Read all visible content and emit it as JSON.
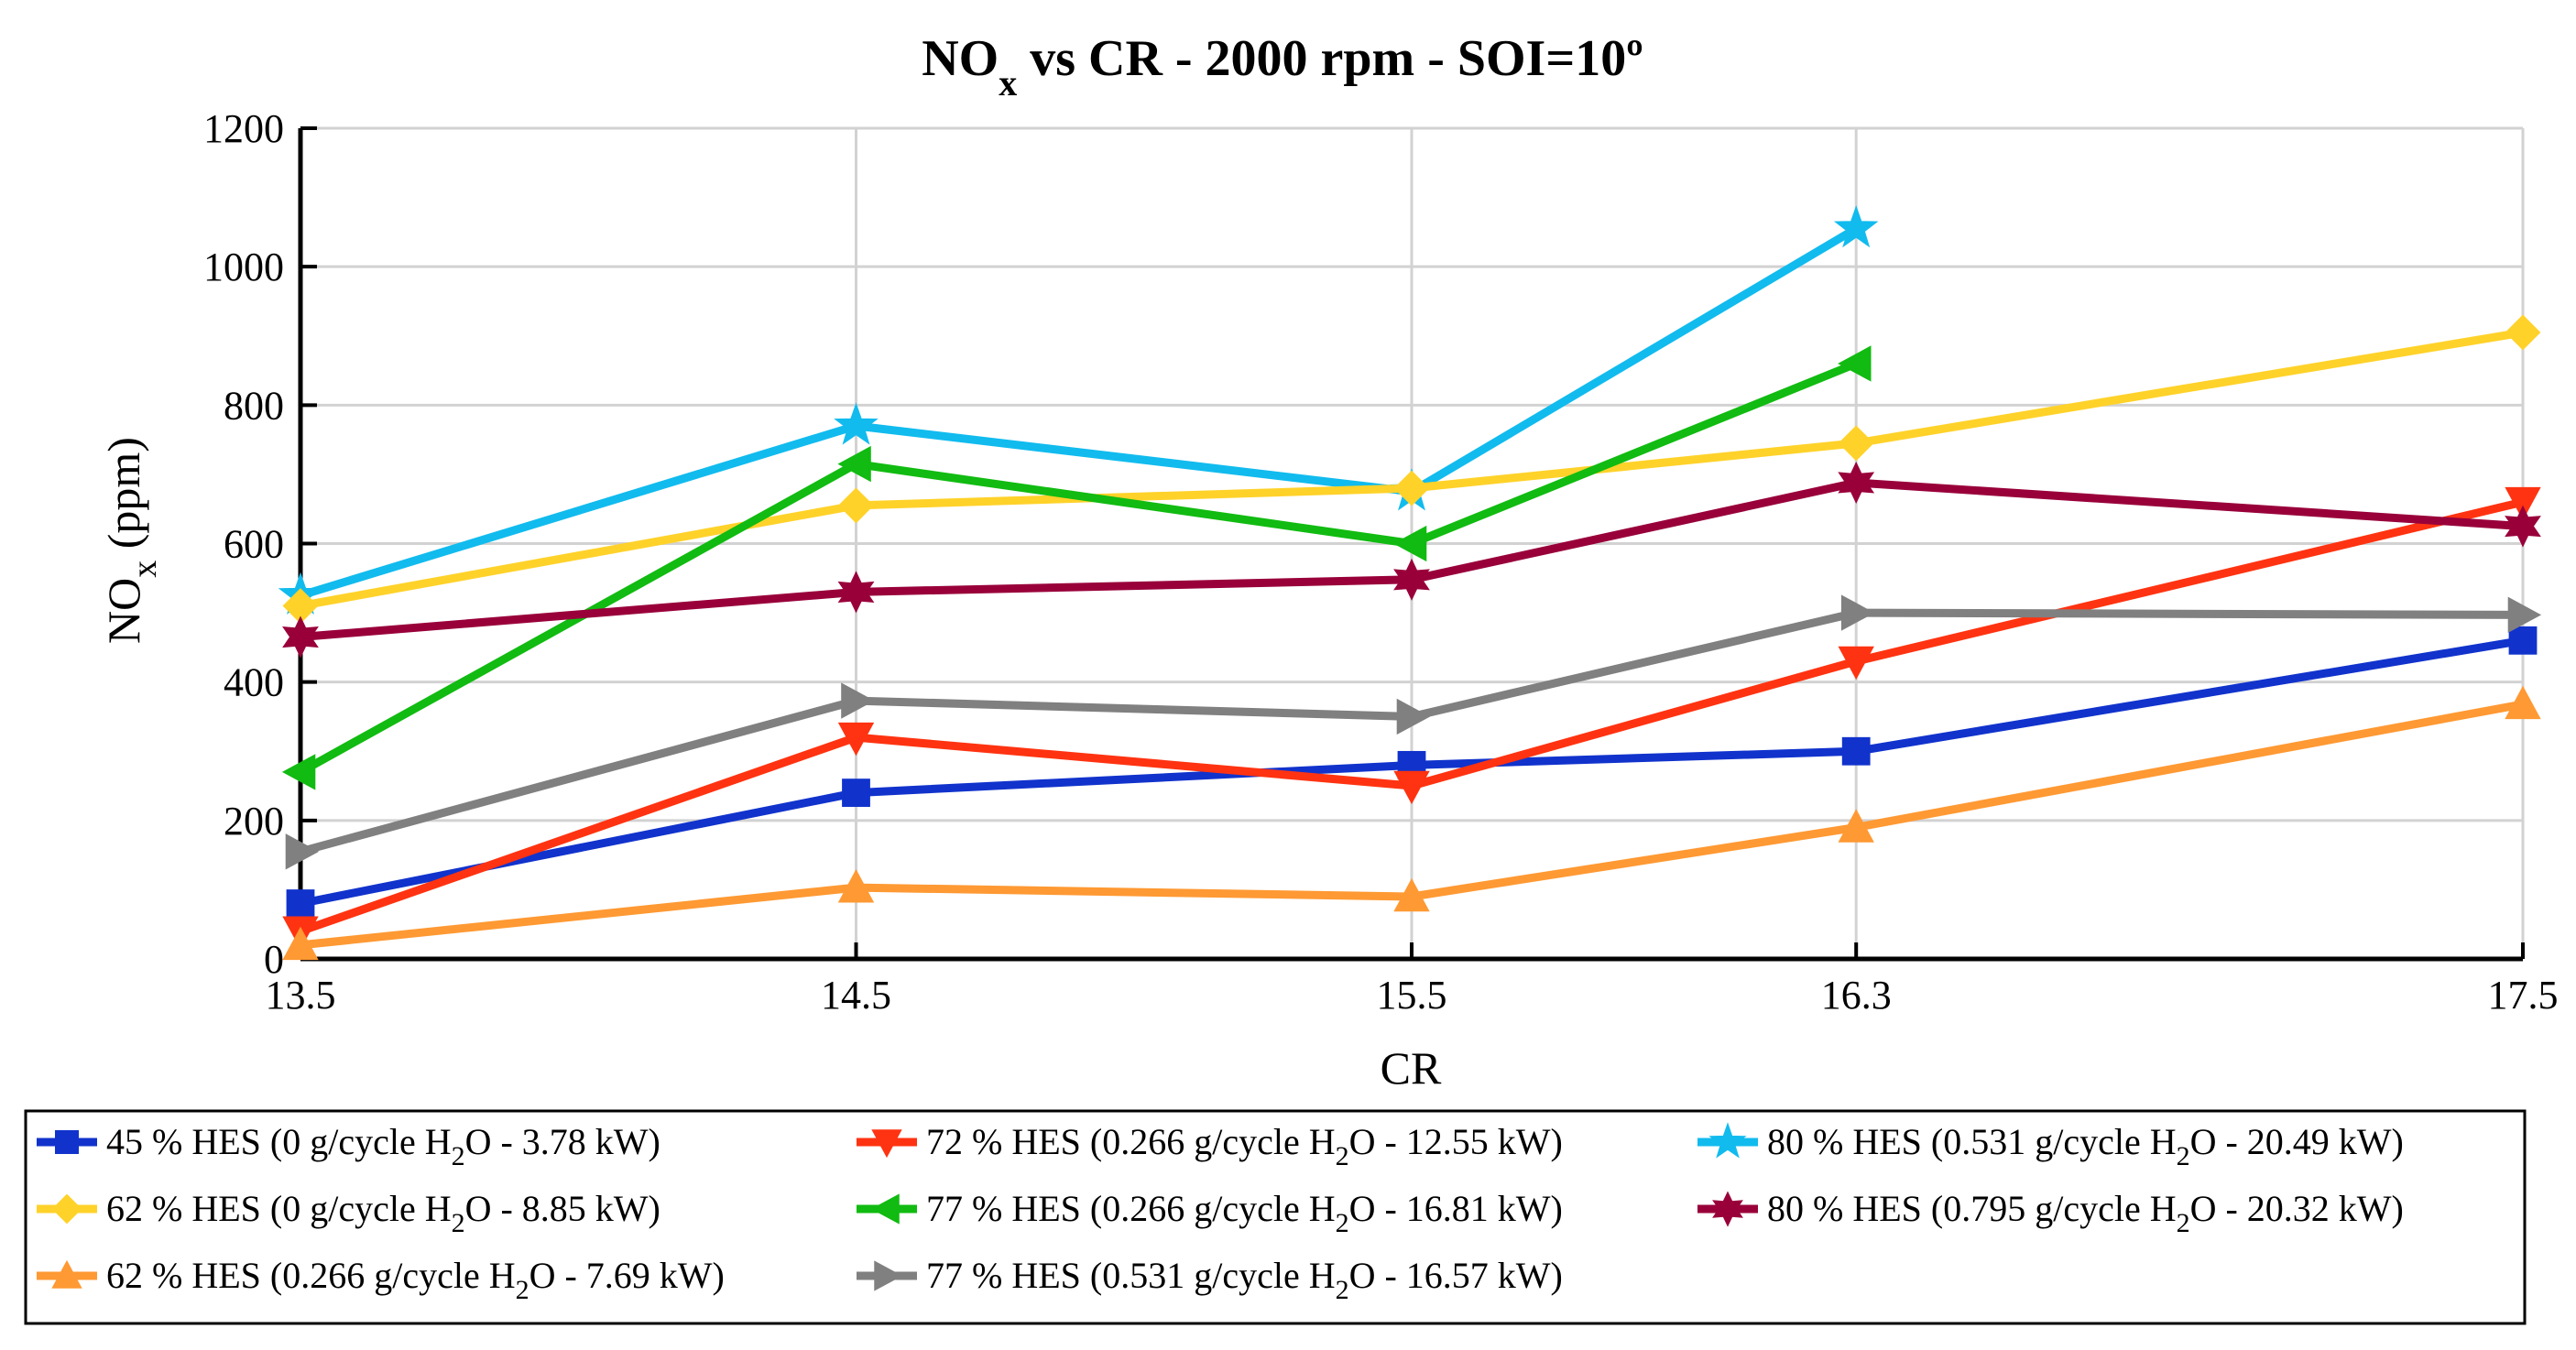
{
  "chart_data": {
    "type": "line",
    "title": "NOx vs CR - 2000 rpm - SOI=10º",
    "title_parts": {
      "main": "NO",
      "sub": "x",
      "rest": " vs CR - 2000 rpm - SOI=10º"
    },
    "xlabel": "CR",
    "ylabel": "NOx (ppm)",
    "ylabel_parts": {
      "main": "NO",
      "sub": "x",
      "rest": " (ppm)"
    },
    "x_ticks": [
      "13.5",
      "14.5",
      "15.5",
      "16.3",
      "17.5"
    ],
    "x_tick_values": [
      13.5,
      14.5,
      15.5,
      16.3,
      17.5
    ],
    "y_ticks": [
      "0",
      "200",
      "400",
      "600",
      "800",
      "1000",
      "1200"
    ],
    "y_tick_values": [
      0,
      200,
      400,
      600,
      800,
      1000,
      1200
    ],
    "xlim": [
      13.5,
      17.5
    ],
    "ylim": [
      0,
      1200
    ],
    "grid": true,
    "legend_position": "below",
    "series": [
      {
        "name": "45 % HES (0 g/cycle H2O - 3.78 kW)",
        "label": {
          "pre": "45 % HES (0 g/cycle H",
          "sub": "2",
          "post": "O - 3.78 kW)"
        },
        "color": "#1133cc",
        "marker": "square",
        "x": [
          13.5,
          14.5,
          15.5,
          16.3,
          17.5
        ],
        "y": [
          80,
          240,
          280,
          300,
          460
        ]
      },
      {
        "name": "72 % HES (0.266 g/cycle H2O - 12.55 kW)",
        "label": {
          "pre": "72 % HES (0.266 g/cycle H",
          "sub": "2",
          "post": "O - 12.55 kW)"
        },
        "color": "#ff3311",
        "marker": "triangle-down",
        "x": [
          13.5,
          14.5,
          15.5,
          16.3,
          17.5
        ],
        "y": [
          40,
          320,
          250,
          430,
          660
        ]
      },
      {
        "name": "80 % HES (0.531 g/cycle H2O - 20.49 kW)",
        "label": {
          "pre": "80 % HES (0.531 g/cycle H",
          "sub": "2",
          "post": "O - 20.49 kW)"
        },
        "color": "#11bbee",
        "marker": "star",
        "x": [
          13.5,
          14.5,
          15.5,
          16.3
        ],
        "y": [
          525,
          770,
          675,
          1055
        ]
      },
      {
        "name": "62 % HES (0 g/cycle H2O - 8.85 kW)",
        "label": {
          "pre": "62 % HES (0 g/cycle H",
          "sub": "2",
          "post": "O - 8.85 kW)"
        },
        "color": "#ffd22a",
        "marker": "diamond",
        "x": [
          13.5,
          14.5,
          15.5,
          16.3,
          17.5
        ],
        "y": [
          510,
          655,
          680,
          745,
          905
        ]
      },
      {
        "name": "77 % HES (0.266 g/cycle H2O - 16.81 kW)",
        "label": {
          "pre": "77 % HES (0.266 g/cycle H",
          "sub": "2",
          "post": "O - 16.81 kW)"
        },
        "color": "#11bb11",
        "marker": "triangle-left",
        "x": [
          13.5,
          14.5,
          15.5,
          16.3
        ],
        "y": [
          270,
          715,
          600,
          860
        ]
      },
      {
        "name": "80 % HES (0.795 g/cycle H2O - 20.32 kW)",
        "label": {
          "pre": "80 % HES (0.795 g/cycle H",
          "sub": "2",
          "post": "O - 20.32 kW)"
        },
        "color": "#99003a",
        "marker": "hexagram",
        "x": [
          13.5,
          14.5,
          15.5,
          16.3,
          17.5
        ],
        "y": [
          465,
          530,
          548,
          688,
          625
        ]
      },
      {
        "name": "62 % HES (0.266 g/cycle H2O - 7.69 kW)",
        "label": {
          "pre": "62 % HES (0.266 g/cycle H",
          "sub": "2",
          "post": "O - 7.69 kW)"
        },
        "color": "#ff9933",
        "marker": "triangle-up",
        "x": [
          13.5,
          14.5,
          15.5,
          16.3,
          17.5
        ],
        "y": [
          20,
          103,
          90,
          190,
          368
        ]
      },
      {
        "name": "77 % HES (0.531 g/cycle H2O - 16.57 kW)",
        "label": {
          "pre": "77 % HES (0.531 g/cycle H",
          "sub": "2",
          "post": "O - 16.57 kW)"
        },
        "color": "#808080",
        "marker": "triangle-right",
        "x": [
          13.5,
          14.5,
          15.5,
          16.3,
          17.5
        ],
        "y": [
          155,
          373,
          350,
          500,
          497
        ]
      }
    ]
  }
}
